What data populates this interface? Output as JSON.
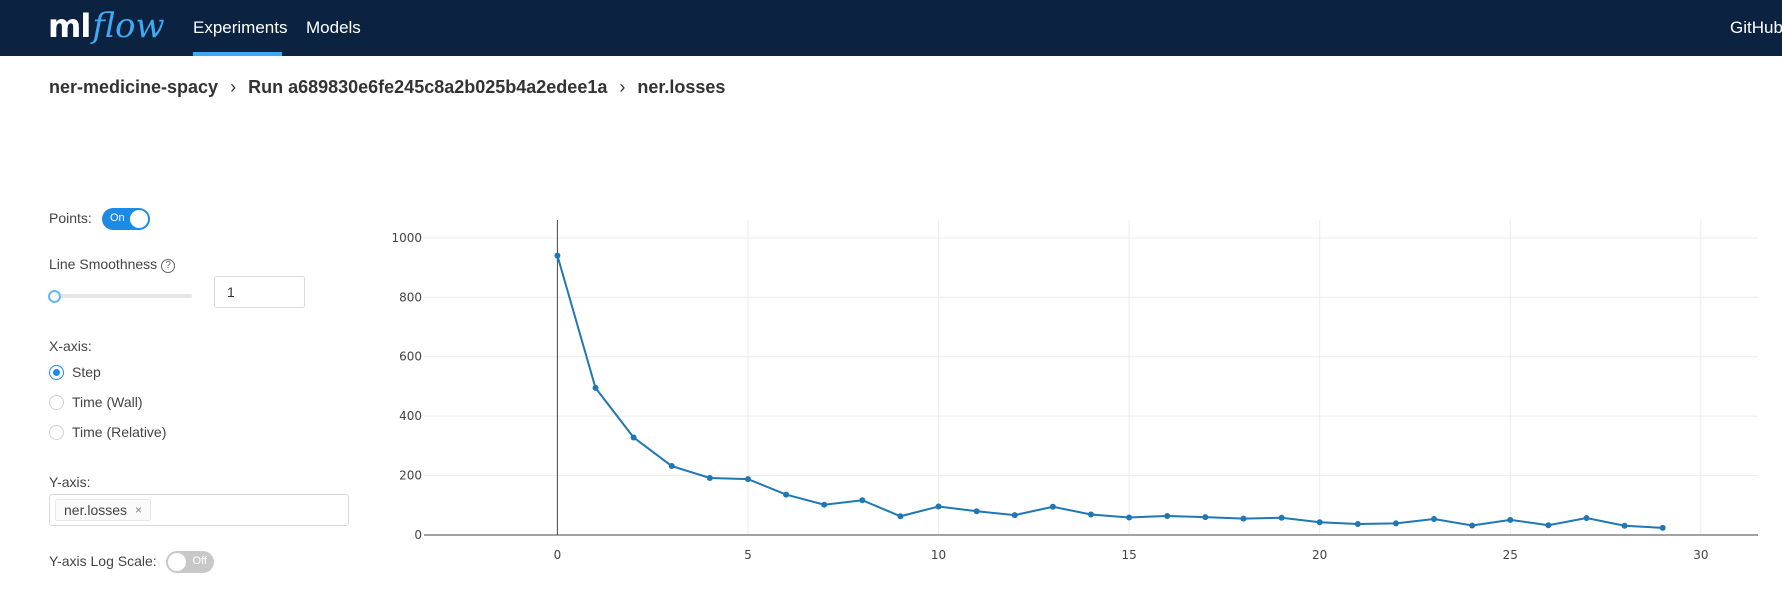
{
  "header": {
    "logo_ml": "ml",
    "logo_flow": "flow",
    "nav": {
      "experiments": "Experiments",
      "models": "Models",
      "github": "GitHub"
    },
    "colors": {
      "background": "#0b2341",
      "accent": "#3fa9f5"
    }
  },
  "breadcrumb": {
    "experiment": "ner-medicine-spacy",
    "run": "Run a689830e6fe245c8a2b025b4a2edee1a",
    "metric": "ner.losses",
    "separator": "›"
  },
  "controls": {
    "points_label": "Points:",
    "points_toggle": "On",
    "smoothness_label": "Line Smoothness",
    "smoothness_help_icon": "question-circle-icon",
    "smoothness_value": "1",
    "xaxis_label": "X-axis:",
    "xaxis_options": [
      "Step",
      "Time (Wall)",
      "Time (Relative)"
    ],
    "xaxis_selected": "Step",
    "yaxis_label": "Y-axis:",
    "yaxis_tag": "ner.losses",
    "tag_close": "×",
    "ylog_label": "Y-axis Log Scale:",
    "ylog_toggle": "Off",
    "accent": "#1c8be6"
  },
  "chart_data": {
    "type": "line",
    "x": [
      0,
      1,
      2,
      3,
      4,
      5,
      6,
      7,
      8,
      9,
      10,
      11,
      12,
      13,
      14,
      15,
      16,
      17,
      18,
      19,
      20,
      21,
      22,
      23,
      24,
      25,
      26,
      27,
      28,
      29
    ],
    "series": [
      {
        "values": [
          940,
          495,
          328,
          232,
          192,
          188,
          136,
          102,
          117,
          63,
          96,
          80,
          67,
          95,
          69,
          59,
          64,
          60,
          55,
          58,
          43,
          37,
          39,
          54,
          32,
          51,
          33,
          57,
          31,
          24
        ],
        "color": "#1f77b4"
      }
    ],
    "xlim": [
      -3.5,
      31.5
    ],
    "ylim": [
      0,
      1060
    ],
    "xticks": [
      0,
      5,
      10,
      15,
      20,
      25,
      30
    ],
    "yticks": [
      0,
      200,
      400,
      600,
      800,
      1000
    ],
    "markers": true,
    "grid": true
  }
}
